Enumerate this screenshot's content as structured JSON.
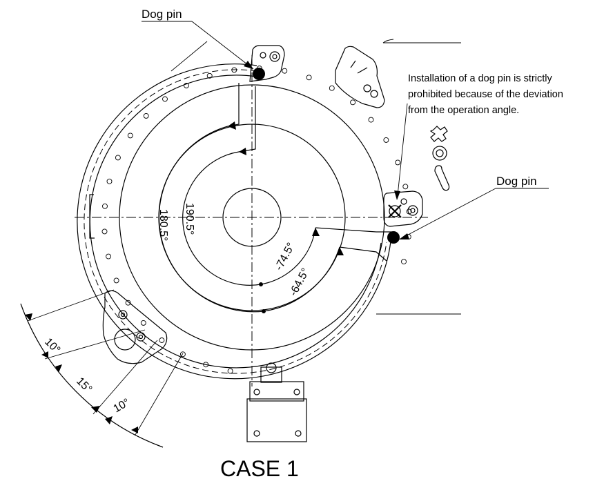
{
  "labels": {
    "dog_pin_top": "Dog pin",
    "dog_pin_right": "Dog pin",
    "note_lines": [
      "Installation of a dog pin is strictly",
      "prohibited because of the deviation",
      "from the operation angle."
    ],
    "angle_190": "190.5°",
    "angle_180": "180.5°",
    "angle_neg74": "-74.5°",
    "angle_neg64": "-64.5°",
    "dim_10a": "10°",
    "dim_15": "15°",
    "dim_10b": "10°",
    "caption": "CASE 1"
  }
}
